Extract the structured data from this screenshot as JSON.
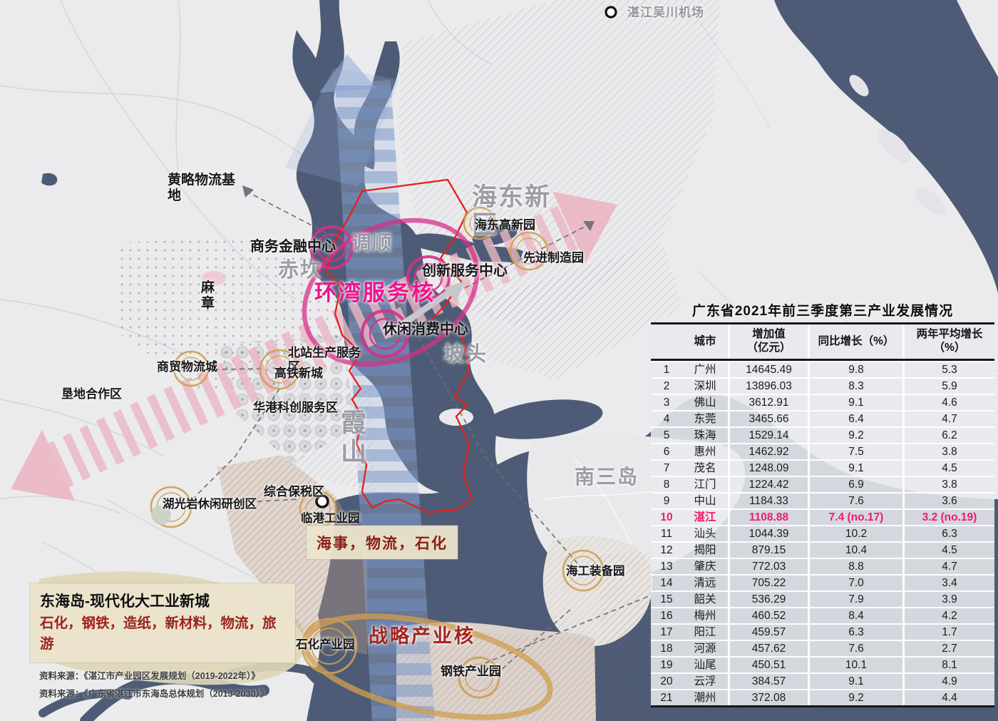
{
  "map": {
    "labels": {
      "airport": "湛江吴川机场",
      "huanglue": "黄略物流基地",
      "mazhang": "麻章",
      "chikan": "赤坎",
      "diaoshun": "调顺",
      "potou": "坡头",
      "xiashan": "霞山",
      "haidong_new": "海东新区",
      "nansandao": "南三岛",
      "shangwu": "商务金融中心",
      "chuangxin": "创新服务中心",
      "xiuxian": "休闲消费中心",
      "huanwan": "环湾服务核",
      "haidong_gaoxin": "海东高新园",
      "xianjin": "先进制造园",
      "shangmao": "商贸物流城",
      "kendi": "垦地合作区",
      "beizhan": "北站生产服务区",
      "gaotie": "高铁新城",
      "huagang": "华港科创服务区",
      "huguangyan": "湖光岩休闲研创区",
      "zonghe": "综合保税区",
      "lingang": "临港工业园",
      "haigong": "海工装备园",
      "shihua": "石化产业园",
      "gangtie": "钢铁产业园",
      "zhanlve": "战略产业核",
      "haishi": "海事，物流，石化"
    },
    "industry_box": {
      "title": "东海岛-现代化大工业新城",
      "industries": "石化，钢铁，造纸，新材料，物流，旅游"
    },
    "sources": [
      "资料来源：《湛江市产业园区发展规划（2019-2022年）》",
      "资料来源：《广东省湛江市东海岛总体规划（2013-2030）》"
    ]
  },
  "table": {
    "title": "广东省2021年前三季度第三产业发展情况",
    "headers": {
      "city": "城市",
      "value_l1": "增加值",
      "value_l2": "（亿元）",
      "yoy": "同比增长（%）",
      "avg_l1": "两年平均增长",
      "avg_l2": "（%）"
    },
    "rows": [
      {
        "rank": "1",
        "city": "广州",
        "value": "14645.49",
        "yoy": "9.8",
        "avg": "5.3",
        "highlight": false
      },
      {
        "rank": "2",
        "city": "深圳",
        "value": "13896.03",
        "yoy": "8.3",
        "avg": "5.9",
        "highlight": false
      },
      {
        "rank": "3",
        "city": "佛山",
        "value": "3612.91",
        "yoy": "9.1",
        "avg": "4.6",
        "highlight": false
      },
      {
        "rank": "4",
        "city": "东莞",
        "value": "3465.66",
        "yoy": "6.4",
        "avg": "4.7",
        "highlight": false
      },
      {
        "rank": "5",
        "city": "珠海",
        "value": "1529.14",
        "yoy": "9.2",
        "avg": "6.2",
        "highlight": false
      },
      {
        "rank": "6",
        "city": "惠州",
        "value": "1462.92",
        "yoy": "7.5",
        "avg": "3.8",
        "highlight": false
      },
      {
        "rank": "7",
        "city": "茂名",
        "value": "1248.09",
        "yoy": "9.1",
        "avg": "4.5",
        "highlight": false
      },
      {
        "rank": "8",
        "city": "江门",
        "value": "1224.42",
        "yoy": "6.9",
        "avg": "3.8",
        "highlight": false
      },
      {
        "rank": "9",
        "city": "中山",
        "value": "1184.33",
        "yoy": "7.6",
        "avg": "3.6",
        "highlight": false
      },
      {
        "rank": "10",
        "city": "湛江",
        "value": "1108.88",
        "yoy": "7.4 (no.17)",
        "avg": "3.2 (no.19)",
        "highlight": true
      },
      {
        "rank": "11",
        "city": "汕头",
        "value": "1044.39",
        "yoy": "10.2",
        "avg": "6.3",
        "highlight": false
      },
      {
        "rank": "12",
        "city": "揭阳",
        "value": "879.15",
        "yoy": "10.4",
        "avg": "4.5",
        "highlight": false
      },
      {
        "rank": "13",
        "city": "肇庆",
        "value": "772.03",
        "yoy": "8.8",
        "avg": "4.7",
        "highlight": false
      },
      {
        "rank": "14",
        "city": "清远",
        "value": "705.22",
        "yoy": "7.0",
        "avg": "3.4",
        "highlight": false
      },
      {
        "rank": "15",
        "city": "韶关",
        "value": "536.29",
        "yoy": "7.9",
        "avg": "3.9",
        "highlight": false
      },
      {
        "rank": "16",
        "city": "梅州",
        "value": "460.52",
        "yoy": "8.4",
        "avg": "4.2",
        "highlight": false
      },
      {
        "rank": "17",
        "city": "阳江",
        "value": "459.57",
        "yoy": "6.3",
        "avg": "1.7",
        "highlight": false
      },
      {
        "rank": "18",
        "city": "河源",
        "value": "457.62",
        "yoy": "7.6",
        "avg": "2.7",
        "highlight": false
      },
      {
        "rank": "19",
        "city": "汕尾",
        "value": "450.51",
        "yoy": "10.1",
        "avg": "8.1",
        "highlight": false
      },
      {
        "rank": "20",
        "city": "云浮",
        "value": "384.57",
        "yoy": "9.1",
        "avg": "4.9",
        "highlight": false
      },
      {
        "rank": "21",
        "city": "潮州",
        "value": "372.08",
        "yoy": "9.2",
        "avg": "4.4",
        "highlight": false
      }
    ]
  },
  "colors": {
    "sea": "#4d5b76",
    "highlight_pink": "#f5186e",
    "magenta": "#e5308e",
    "red_boundary": "#e32119",
    "gold_ring": "#cf9f50",
    "dark_red": "#9b231f"
  }
}
